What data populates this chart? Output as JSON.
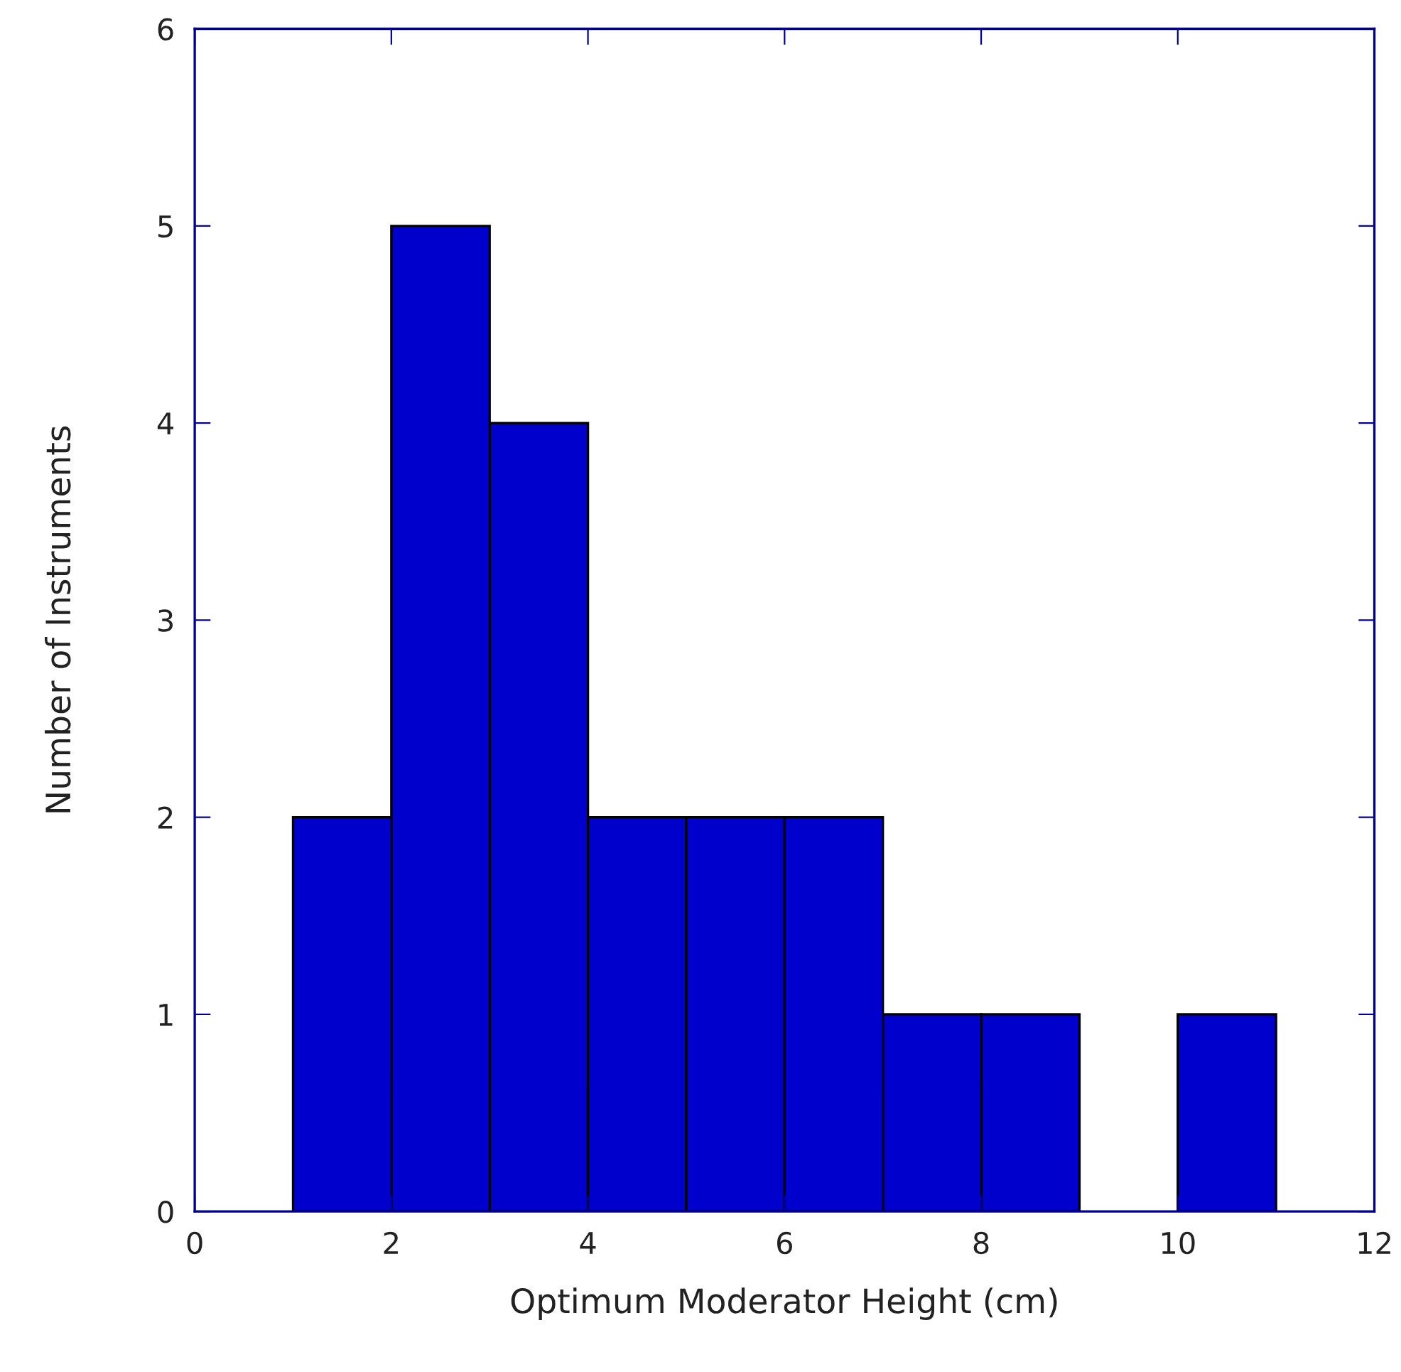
{
  "chart_data": {
    "type": "histogram",
    "xlabel": "Optimum Moderator Height (cm)",
    "ylabel": "Number of Instruments",
    "bins": [
      1,
      2,
      3,
      4,
      5,
      6,
      7,
      8,
      9,
      10,
      11
    ],
    "values": [
      2,
      5,
      4,
      2,
      2,
      2,
      1,
      1,
      0,
      1
    ],
    "color": "#0000cc",
    "xlim": [
      0,
      12
    ],
    "xticks": [
      0,
      2,
      4,
      6,
      8,
      10,
      12
    ],
    "ylim": [
      0,
      6
    ],
    "yticks": [
      0,
      1,
      2,
      3,
      4,
      5,
      6
    ],
    "grid": false,
    "legend": false
  }
}
